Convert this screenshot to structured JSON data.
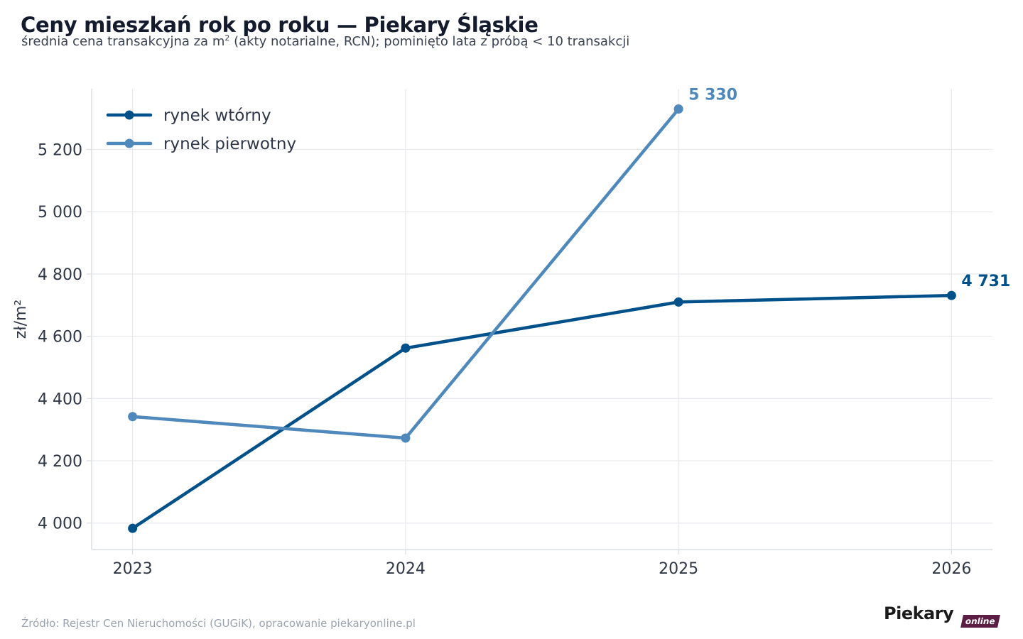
{
  "header": {
    "title": "Ceny mieszkań rok po roku — Piekary Śląskie",
    "subtitle_before": "średnia cena transakcyjna za m",
    "subtitle_sup": "2",
    "subtitle_after": " (akty notarialne, RCN); pominięto lata z próbą < 10 transakcji"
  },
  "footer": {
    "source": "Źródło: Rejestr Cen Nieruchomości (GUGiK), opracowanie piekaryonline.pl",
    "logo_main": "Piekary",
    "logo_tag": "online"
  },
  "colors": {
    "secondary": "#00508a",
    "primary": "#4f88ba",
    "grid": "#e8eaee",
    "axis": "#dcdfe4",
    "tick_text": "#2f3645"
  },
  "chart_data": {
    "type": "line",
    "ylabel": "zł/m²",
    "x": [
      2023,
      2024,
      2025,
      2026
    ],
    "x_tick_labels": [
      "2023",
      "2024",
      "2025",
      "2026"
    ],
    "y_ticks": [
      4000,
      4200,
      4400,
      4600,
      4800,
      5000,
      5200
    ],
    "y_tick_labels": [
      "4 000",
      "4 200",
      "4 400",
      "4 600",
      "4 800",
      "5 000",
      "5 200"
    ],
    "ylim": [
      3915,
      5395
    ],
    "xlim": [
      2022.85,
      2026.15
    ],
    "grid": true,
    "legend": "top-left",
    "series": [
      {
        "name": "rynek wtórny",
        "color": "#00508a",
        "x": [
          2023,
          2024,
          2025,
          2026
        ],
        "values": [
          3983,
          4562,
          4710,
          4731
        ],
        "end_label": "4 731"
      },
      {
        "name": "rynek pierwotny",
        "color": "#4f88ba",
        "x": [
          2023,
          2024,
          2025
        ],
        "values": [
          4342,
          4273,
          5330
        ],
        "end_label": "5 330"
      }
    ]
  }
}
